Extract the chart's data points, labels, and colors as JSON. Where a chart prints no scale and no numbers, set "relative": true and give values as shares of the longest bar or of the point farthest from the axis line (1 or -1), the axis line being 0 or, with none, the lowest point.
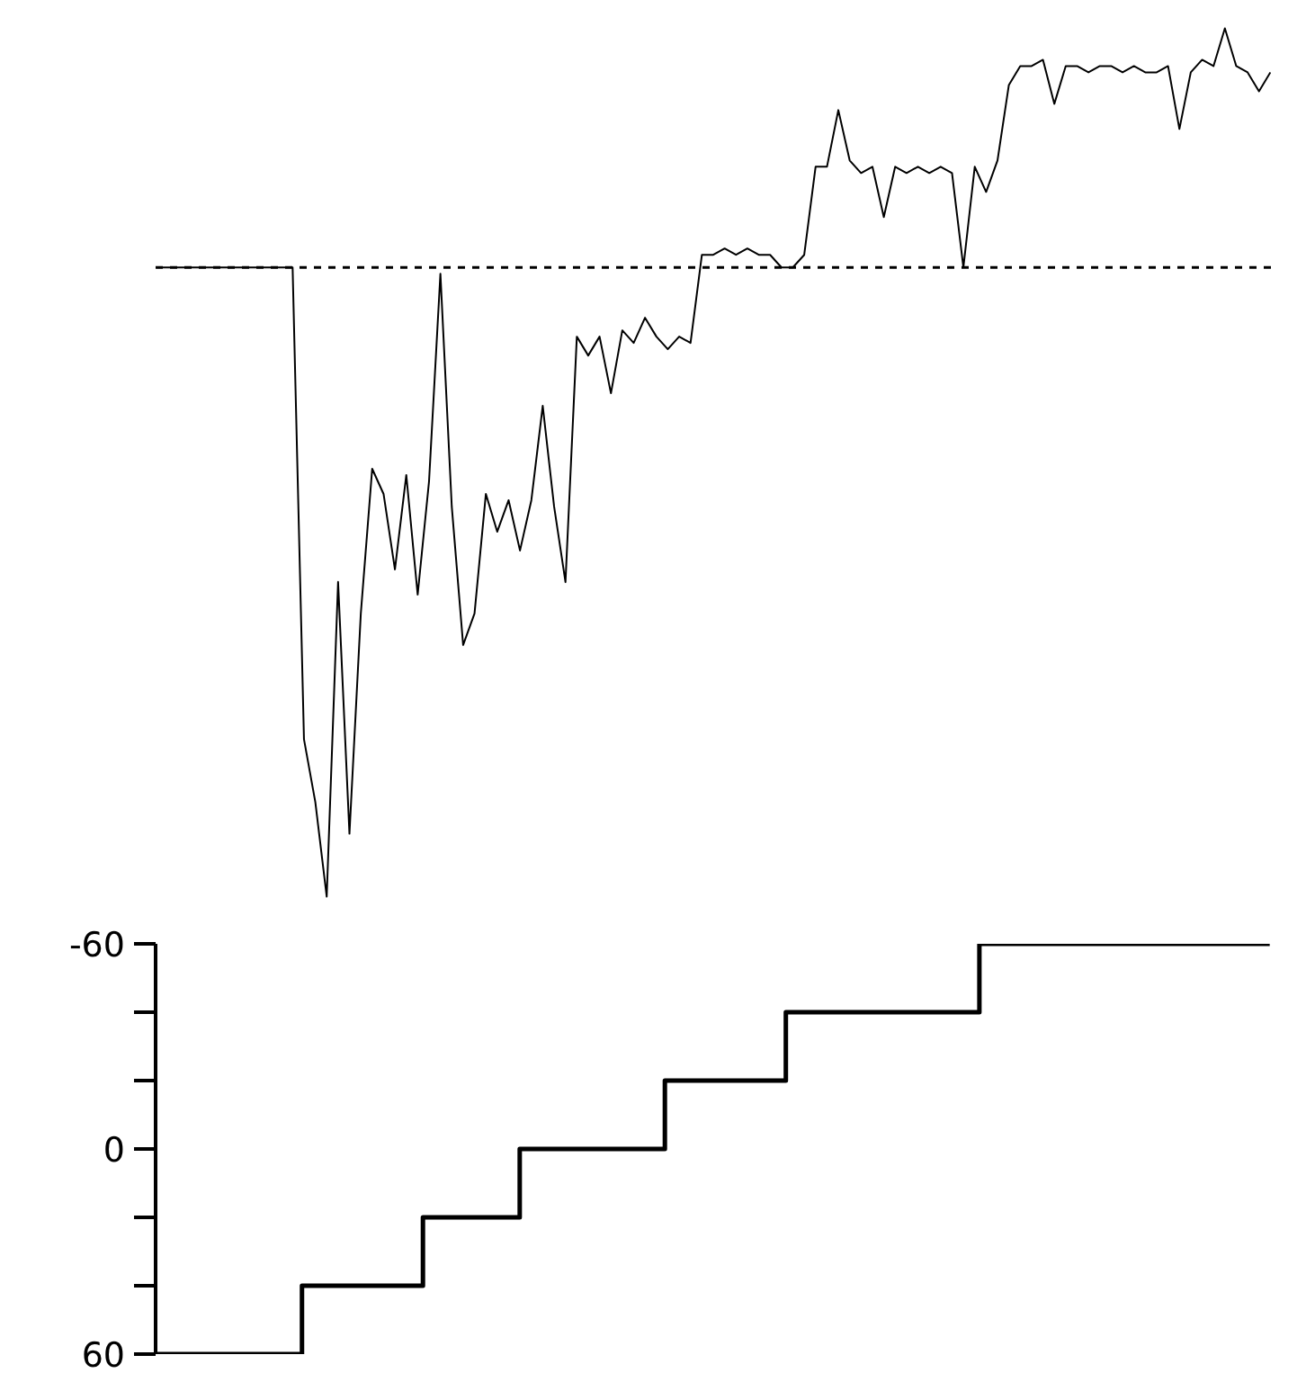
{
  "chart_data": [
    {
      "type": "line",
      "relative": true,
      "categories": [
        null,
        null,
        null,
        null,
        null,
        null,
        null,
        null,
        null,
        null,
        null,
        null,
        null,
        null,
        null,
        null,
        null,
        null,
        null,
        null,
        null,
        null,
        null,
        null,
        null,
        null,
        null,
        null,
        null,
        null,
        null,
        null,
        null,
        null,
        null,
        null,
        null,
        null,
        null,
        null,
        null,
        null,
        null,
        null,
        null,
        null,
        null,
        null,
        null,
        null,
        null,
        null,
        null,
        null,
        null,
        null,
        null,
        null,
        null,
        null,
        null,
        null,
        null,
        null,
        null,
        null,
        null,
        null,
        null,
        null,
        null,
        null,
        null,
        null,
        null,
        null,
        null,
        null,
        null,
        null,
        null,
        null,
        null,
        null,
        null,
        null,
        null,
        null,
        null,
        null,
        null,
        null,
        null,
        null,
        null,
        null,
        null,
        null,
        null
      ],
      "series": [
        {
          "color": "#000000",
          "values": [
            0,
            0,
            0,
            0,
            0,
            0,
            0,
            0,
            0,
            0,
            0,
            0,
            0,
            -0.75,
            -0.85,
            -1.0,
            -0.5,
            -0.9,
            -0.55,
            -0.32,
            -0.36,
            -0.48,
            -0.33,
            -0.52,
            -0.34,
            -0.01,
            -0.38,
            -0.6,
            -0.55,
            -0.36,
            -0.42,
            -0.37,
            -0.45,
            -0.37,
            -0.22,
            -0.38,
            -0.5,
            -0.11,
            -0.14,
            -0.11,
            -0.2,
            -0.1,
            -0.12,
            -0.08,
            -0.11,
            -0.13,
            -0.11,
            -0.12,
            0.02,
            0.02,
            0.03,
            0.02,
            0.03,
            0.02,
            0.02,
            0,
            0,
            0.02,
            0.16,
            0.16,
            0.25,
            0.17,
            0.15,
            0.16,
            0.08,
            0.16,
            0.15,
            0.16,
            0.15,
            0.16,
            0.15,
            0,
            0.16,
            0.12,
            0.17,
            0.29,
            0.32,
            0.32,
            0.33,
            0.26,
            0.32,
            0.32,
            0.31,
            0.32,
            0.32,
            0.31,
            0.32,
            0.31,
            0.31,
            0.32,
            0.22,
            0.31,
            0.33,
            0.32,
            0.38,
            0.32,
            0.31,
            0.28,
            0.31
          ]
        }
      ],
      "ref_lines": [
        {
          "axis": "y",
          "value": 0,
          "color": "#000000",
          "line_style": "dashed"
        }
      ],
      "tick_labels": false
    },
    {
      "type": "step",
      "categories": [
        null,
        null,
        null,
        null,
        null,
        null,
        null,
        null,
        null,
        null,
        null,
        null,
        null,
        null,
        null,
        null,
        null,
        null,
        null,
        null,
        null,
        null,
        null,
        null,
        null,
        null,
        null,
        null,
        null,
        null,
        null,
        null,
        null,
        null,
        null,
        null,
        null,
        null,
        null,
        null,
        null,
        null,
        null,
        null,
        null,
        null,
        null
      ],
      "series": [
        {
          "color": "#000000",
          "values": [
            60,
            60,
            60,
            60,
            60,
            60,
            40,
            40,
            40,
            40,
            40,
            20,
            20,
            20,
            20,
            0,
            0,
            0,
            0,
            0,
            0,
            -20,
            -20,
            -20,
            -20,
            -20,
            -40,
            -40,
            -40,
            -40,
            -40,
            -40,
            -40,
            -40,
            -60,
            -60,
            -60,
            -60,
            -60,
            -60,
            -60,
            -60,
            -60,
            -60,
            -60,
            -60,
            -60
          ]
        }
      ],
      "ylim": [
        60,
        -60
      ],
      "yticks": [
        {
          "value": 60,
          "label": "60"
        },
        {
          "value": 40,
          "label": null
        },
        {
          "value": 20,
          "label": null
        },
        0,
        {
          "value": -20,
          "label": null
        },
        {
          "value": -40,
          "label": null
        },
        {
          "value": -60,
          "label": "-60"
        }
      ],
      "tick_labels": "y"
    }
  ]
}
